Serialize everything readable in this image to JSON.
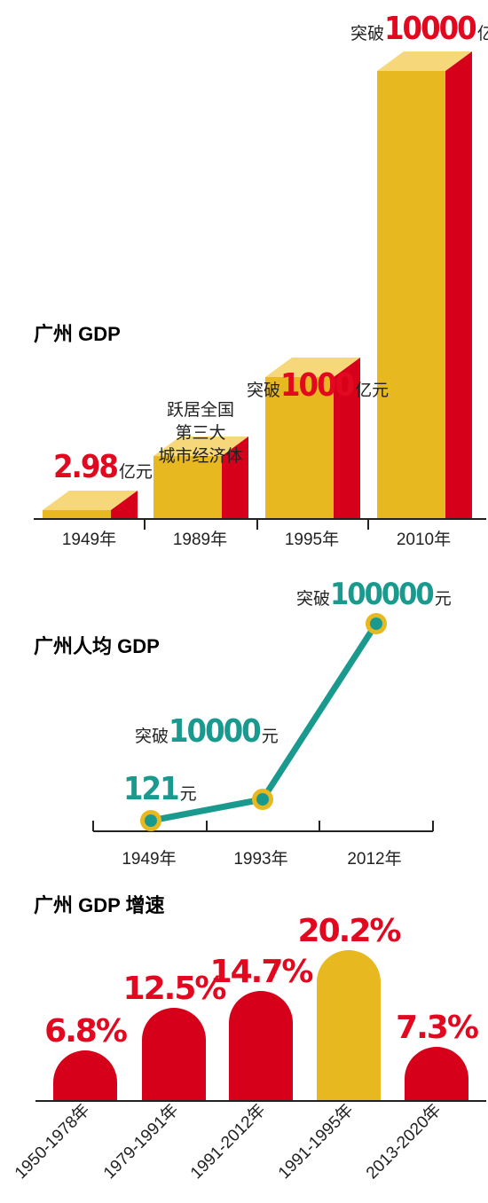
{
  "colors": {
    "gold": "#e8b820",
    "gold_top": "#f6d77a",
    "red": "#d7001b",
    "red_text": "#e1081f",
    "teal": "#1a9a8e",
    "ring": "#e8b820",
    "axis": "#222222"
  },
  "chart_data": [
    {
      "type": "bar",
      "title": "广州 GDP",
      "style": "3d-bar",
      "categories": [
        "1949年",
        "1989年",
        "1995年",
        "2010年"
      ],
      "values": [
        2.98,
        200,
        1000,
        10000
      ],
      "annotations": [
        {
          "category": "1949年",
          "prefix": "",
          "number": "2.98",
          "unit": "亿元"
        },
        {
          "category": "1989年",
          "lines": [
            "跃居全国",
            "第三大",
            "城市经济体"
          ]
        },
        {
          "category": "1995年",
          "prefix": "突破",
          "number": "1000",
          "unit": "亿元"
        },
        {
          "category": "2010年",
          "prefix": "突破",
          "number": "10000",
          "unit": "亿元"
        }
      ]
    },
    {
      "type": "line",
      "title": "广州人均 GDP",
      "categories": [
        "1949年",
        "1993年",
        "2012年"
      ],
      "values": [
        121,
        10000,
        100000
      ],
      "annotations": [
        {
          "category": "1949年",
          "prefix": "",
          "number": "121",
          "unit": "元"
        },
        {
          "category": "1993年",
          "prefix": "突破",
          "number": "10000",
          "unit": "元"
        },
        {
          "category": "2012年",
          "prefix": "突破",
          "number": "100000",
          "unit": "元"
        }
      ]
    },
    {
      "type": "bar",
      "title": "广州 GDP 增速",
      "style": "rounded-column",
      "categories": [
        "1950-1978年",
        "1979-1991年",
        "1991-2012年",
        "1991-1995年",
        "2013-2020年"
      ],
      "values": [
        6.8,
        12.5,
        14.7,
        20.2,
        7.3
      ],
      "labels": [
        "6.8%",
        "12.5%",
        "14.7%",
        "20.2%",
        "7.3%"
      ],
      "highlight": "1991-1995年"
    }
  ]
}
